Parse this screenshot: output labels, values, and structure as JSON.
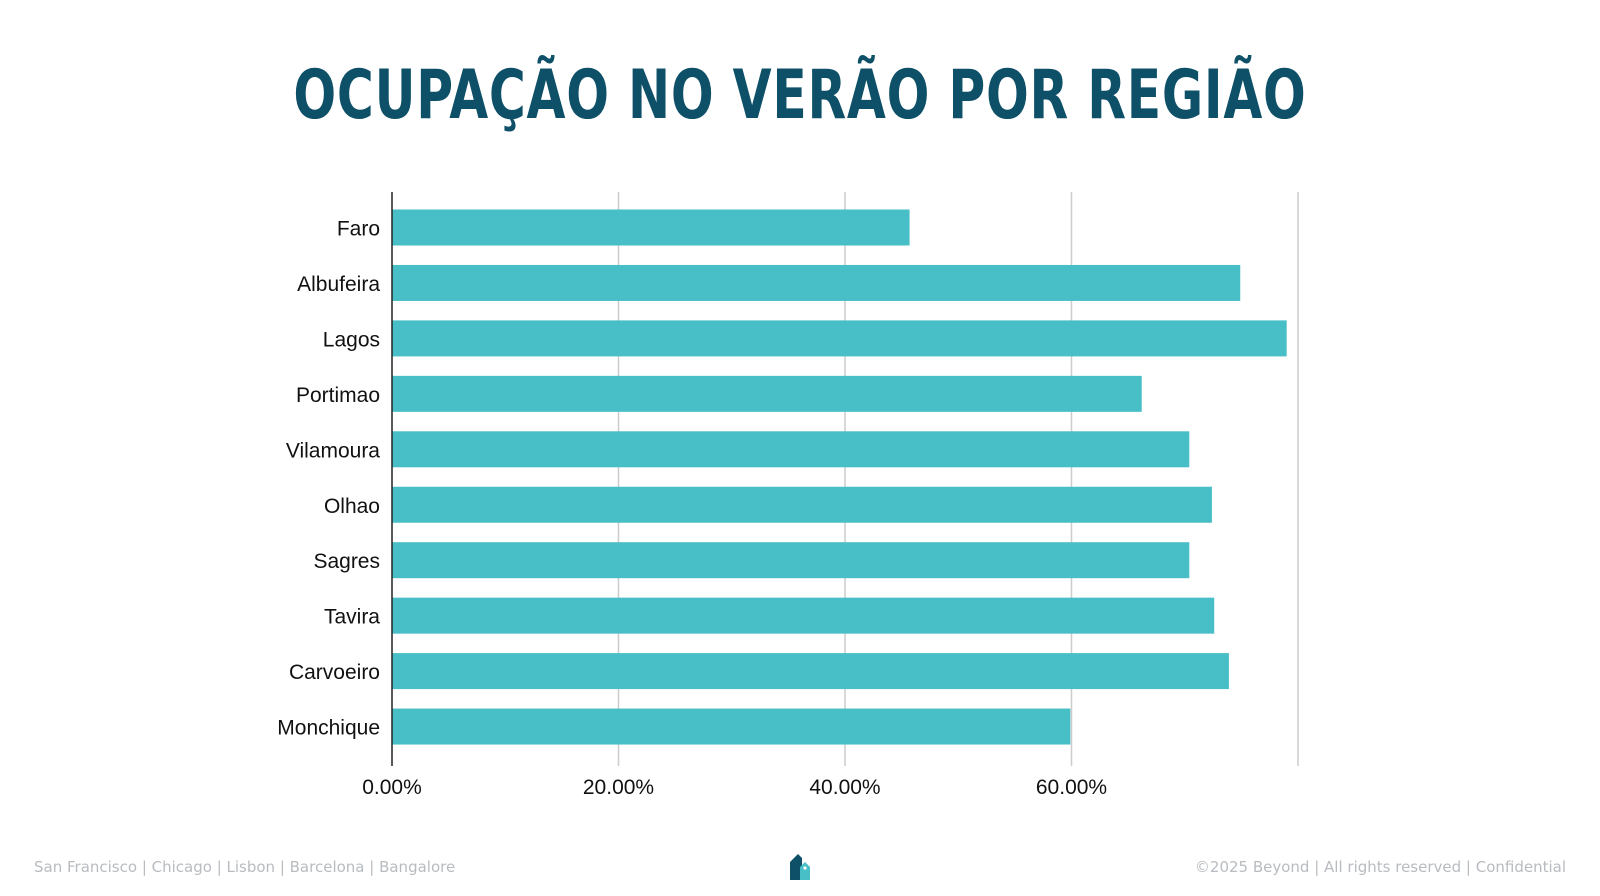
{
  "slide": {
    "title": "OCUPAÇÃO NO VERÃO POR REGIÃO"
  },
  "chart_data": {
    "type": "bar",
    "orientation": "horizontal",
    "title": "",
    "xlabel": "",
    "ylabel": "",
    "categories": [
      "Faro",
      "Albufeira",
      "Lagos",
      "Portimao",
      "Vilamoura",
      "Olhao",
      "Sagres",
      "Tavira",
      "Carvoeiro",
      "Monchique"
    ],
    "values": [
      45.7,
      74.9,
      79.0,
      66.2,
      70.4,
      72.4,
      70.4,
      72.6,
      73.9,
      59.9
    ],
    "xlim": [
      0,
      80
    ],
    "xticks": [
      "0.00%",
      "20.00%",
      "40.00%",
      "60.00%"
    ],
    "grid": true,
    "legend": "none",
    "bar_color": "#48bec6"
  },
  "footer": {
    "offices": "San Francisco | Chicago | Lisbon | Barcelona | Bangalore",
    "copyright": "©2025 Beyond | All rights reserved | Confidential"
  },
  "logo": {
    "icon": "beyond-house-logo-icon",
    "color_dark": "#0d5068",
    "color_light": "#48bec6"
  }
}
